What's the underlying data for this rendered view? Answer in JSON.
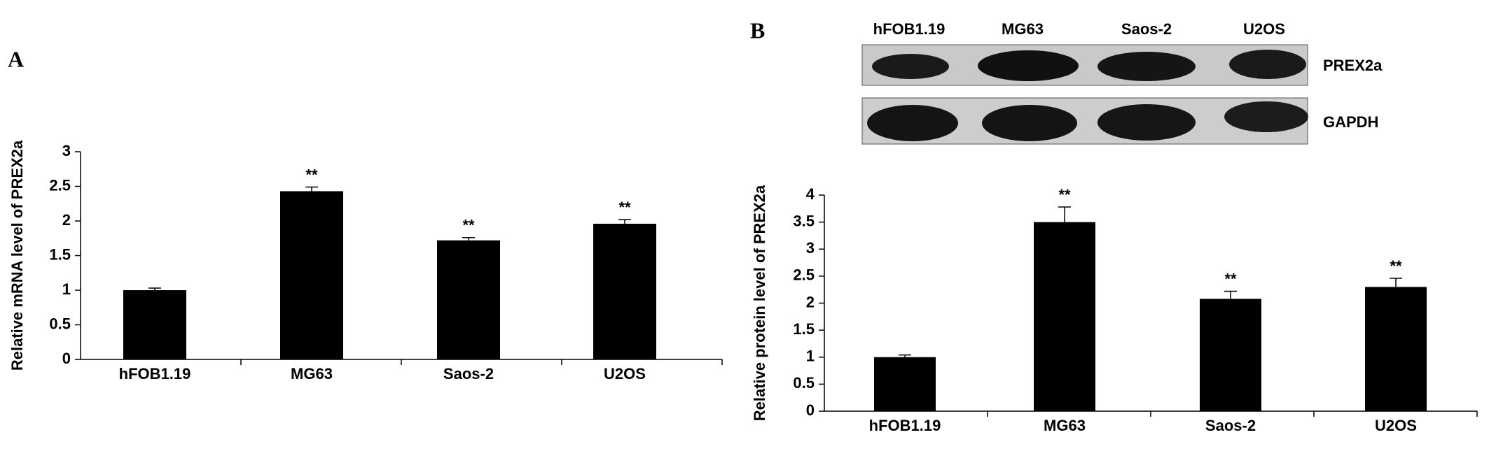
{
  "chart_data": [
    {
      "type": "bar",
      "panel_label": "A",
      "ylabel": "Relative mRNA level of PREX2a",
      "categories": [
        "hFOB1.19",
        "MG63",
        "Saos-2",
        "U2OS"
      ],
      "values": [
        1.0,
        2.43,
        1.72,
        1.96
      ],
      "errors": [
        0.03,
        0.06,
        0.04,
        0.06
      ],
      "annotations": [
        null,
        "**",
        "**",
        "**"
      ],
      "color": "#000000",
      "ylim": [
        0,
        3
      ],
      "yticks": [
        0,
        0.5,
        1,
        1.5,
        2,
        2.5,
        3
      ]
    },
    {
      "type": "bar",
      "panel_label": "B",
      "ylabel": "Relative protein level of PREX2a",
      "categories": [
        "hFOB1.19",
        "MG63",
        "Saos-2",
        "U2OS"
      ],
      "values": [
        1.0,
        3.5,
        2.08,
        2.3
      ],
      "errors": [
        0.04,
        0.28,
        0.14,
        0.16
      ],
      "annotations": [
        null,
        "**",
        "**",
        "**"
      ],
      "color": "#000000",
      "ylim": [
        0,
        4
      ],
      "yticks": [
        0,
        0.5,
        1,
        1.5,
        2,
        2.5,
        3,
        3.5,
        4
      ]
    }
  ],
  "blot": {
    "lanes": [
      "hFOB1.19",
      "MG63",
      "Saos-2",
      "U2OS"
    ],
    "rows": [
      "PREX2a",
      "GAPDH"
    ]
  }
}
